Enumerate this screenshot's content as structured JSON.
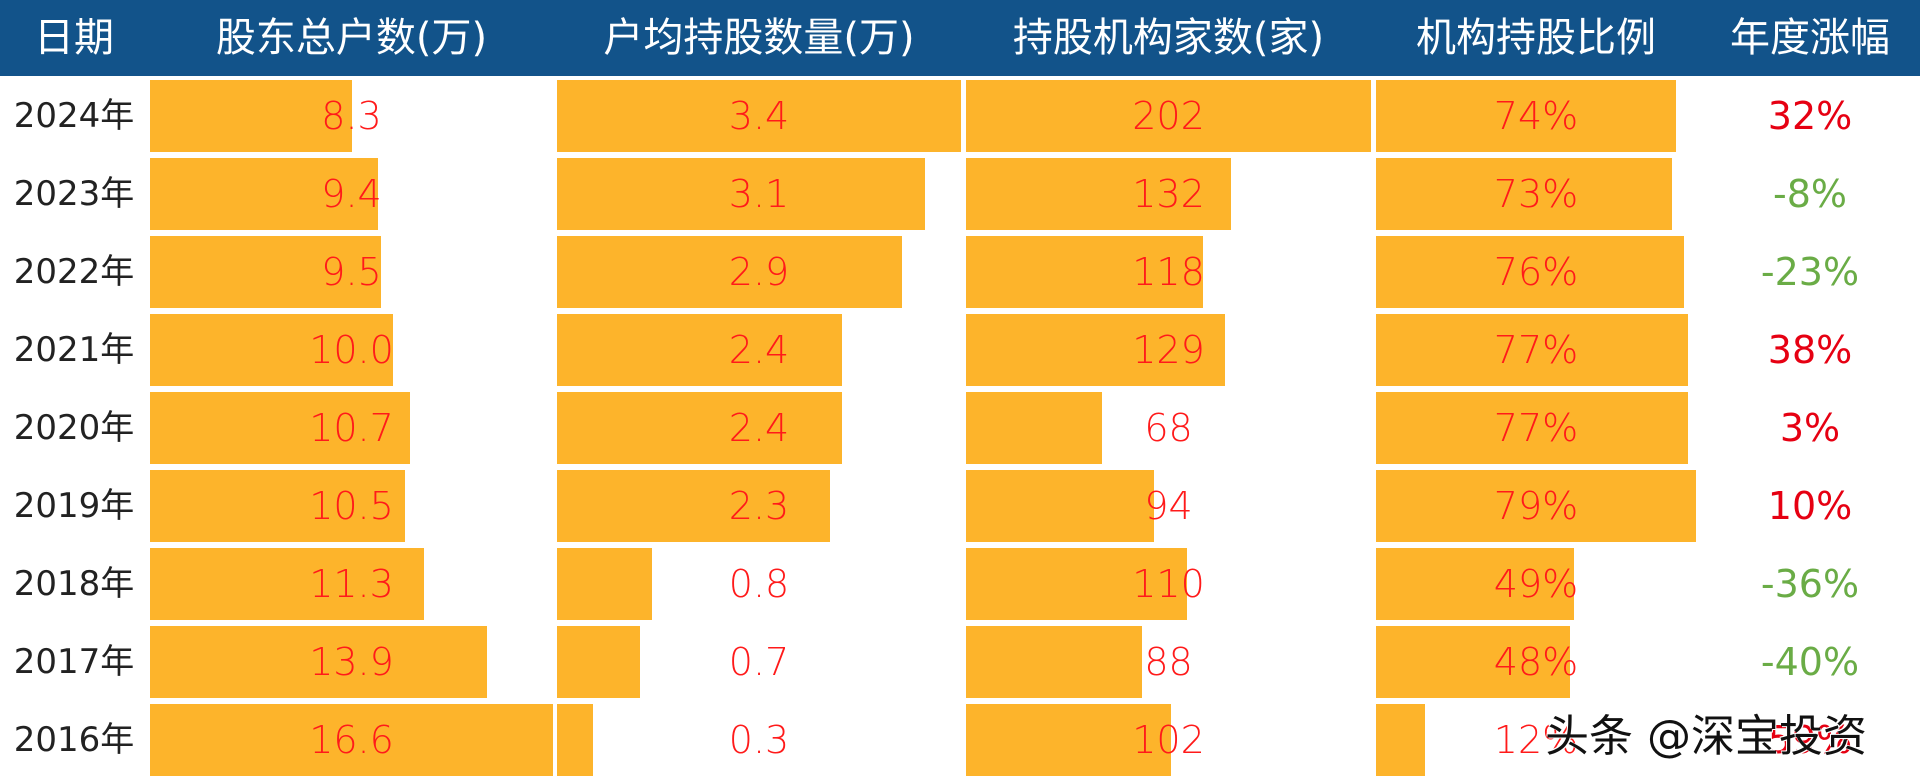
{
  "header": {
    "date": "日期",
    "holders": "股东总户数(万)",
    "avg_holding": "户均持股数量(万)",
    "inst_count": "持股机构家数(家)",
    "inst_ratio": "机构持股比例",
    "annual_change": "年度涨幅"
  },
  "colors": {
    "header_bg": "#12538a",
    "bar": "#fdb42b",
    "value_text": "#ff1a1a",
    "positive": "#e60012",
    "negative": "#6aac46"
  },
  "rows": [
    {
      "date": "2024年",
      "holders": "8.3",
      "avg": "3.4",
      "inst": "202",
      "ratio": "74%",
      "change": "32%",
      "dir": "up"
    },
    {
      "date": "2023年",
      "holders": "9.4",
      "avg": "3.1",
      "inst": "132",
      "ratio": "73%",
      "change": "-8%",
      "dir": "down"
    },
    {
      "date": "2022年",
      "holders": "9.5",
      "avg": "2.9",
      "inst": "118",
      "ratio": "76%",
      "change": "-23%",
      "dir": "down"
    },
    {
      "date": "2021年",
      "holders": "10.0",
      "avg": "2.4",
      "inst": "129",
      "ratio": "77%",
      "change": "38%",
      "dir": "up"
    },
    {
      "date": "2020年",
      "holders": "10.7",
      "avg": "2.4",
      "inst": "68",
      "ratio": "77%",
      "change": "3%",
      "dir": "up"
    },
    {
      "date": "2019年",
      "holders": "10.5",
      "avg": "2.3",
      "inst": "94",
      "ratio": "79%",
      "change": "10%",
      "dir": "up"
    },
    {
      "date": "2018年",
      "holders": "11.3",
      "avg": "0.8",
      "inst": "110",
      "ratio": "49%",
      "change": "-36%",
      "dir": "down"
    },
    {
      "date": "2017年",
      "holders": "13.9",
      "avg": "0.7",
      "inst": "88",
      "ratio": "48%",
      "change": "-40%",
      "dir": "down"
    },
    {
      "date": "2016年",
      "holders": "16.6",
      "avg": "0.3",
      "inst": "102",
      "ratio": "12%",
      "change": "59%",
      "dir": "up"
    }
  ],
  "watermark": "头条 @深宝投资",
  "chart_data": {
    "type": "table",
    "title": "",
    "categories": [
      "2024年",
      "2023年",
      "2022年",
      "2021年",
      "2020年",
      "2019年",
      "2018年",
      "2017年",
      "2016年"
    ],
    "series": [
      {
        "name": "股东总户数(万)",
        "values": [
          8.3,
          9.4,
          9.5,
          10.0,
          10.7,
          10.5,
          11.3,
          13.9,
          16.6
        ]
      },
      {
        "name": "户均持股数量(万)",
        "values": [
          3.4,
          3.1,
          2.9,
          2.4,
          2.4,
          2.3,
          0.8,
          0.7,
          0.3
        ]
      },
      {
        "name": "持股机构家数(家)",
        "values": [
          202,
          132,
          118,
          129,
          68,
          94,
          110,
          88,
          102
        ]
      },
      {
        "name": "机构持股比例",
        "values": [
          74,
          73,
          76,
          77,
          77,
          79,
          49,
          48,
          12
        ],
        "unit": "%"
      },
      {
        "name": "年度涨幅",
        "values": [
          32,
          -8,
          -23,
          38,
          3,
          10,
          -36,
          -40,
          59
        ],
        "unit": "%"
      }
    ],
    "notes": "Table with in-cell horizontal data bars (orange) for the first four metric columns; annual change colored red (positive) / green (negative)."
  }
}
